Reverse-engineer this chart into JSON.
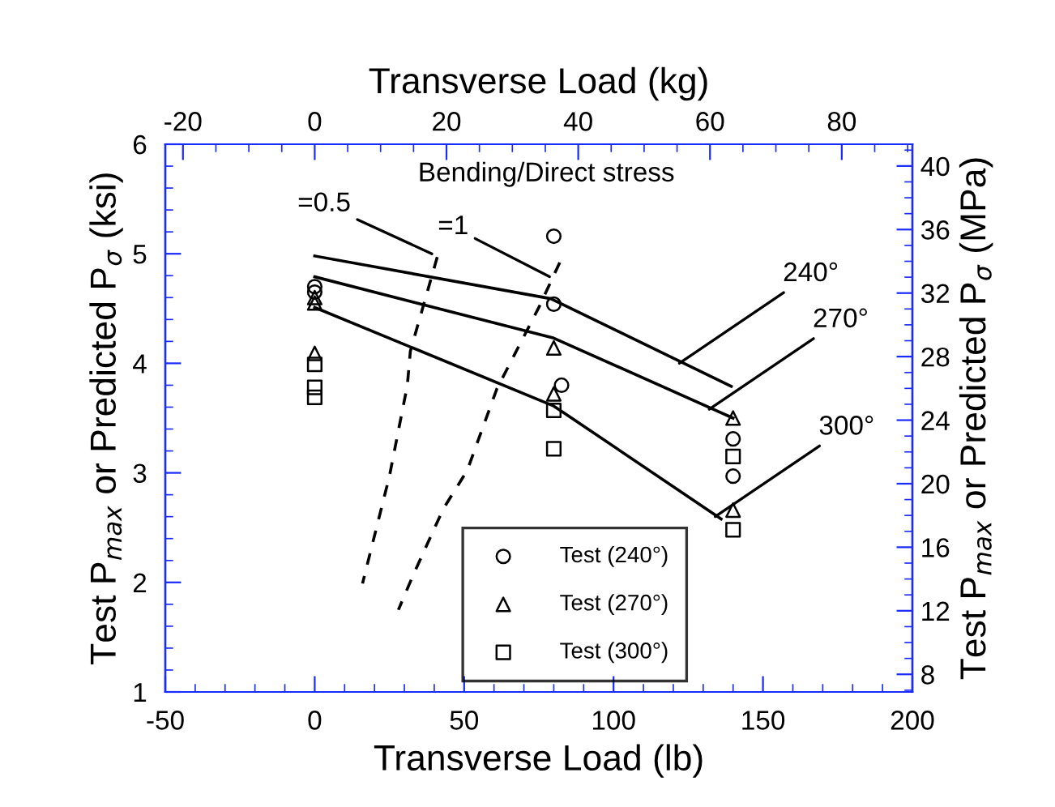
{
  "chart_data": {
    "type": "scatter",
    "xlabel": "Transverse Load (lb)",
    "ylabel": "Test P$_{max}$ or Predicted P$_{σ}$ (ksi)",
    "x2label": "Transverse Load (kg)",
    "y2label": "Test P$_{max}$ or Predicted P$_{σ}$ (MPa)",
    "xlim": [
      -50,
      200
    ],
    "xticks": [
      -50,
      0,
      50,
      100,
      150,
      200
    ],
    "ylim": [
      1,
      6
    ],
    "yticks": [
      1,
      2,
      3,
      4,
      5,
      6
    ],
    "x2lim": [
      -22.68,
      90.72
    ],
    "x2ticks": [
      -20,
      0,
      20,
      40,
      60,
      80
    ],
    "y2lim": [
      6.89,
      41.37
    ],
    "y2ticks": [
      8,
      12,
      16,
      20,
      24,
      28,
      32,
      36,
      40
    ],
    "grid": false,
    "legend": "bottom",
    "series": [
      {
        "name": "Test (240°)",
        "marker": "circle",
        "color": "#000000",
        "x": [
          0,
          0,
          80,
          80,
          82.6,
          140,
          140
        ],
        "values": [
          4.7,
          4.65,
          5.16,
          4.54,
          3.8,
          3.31,
          2.97
        ]
      },
      {
        "name": "Test (270°)",
        "marker": "triangle",
        "color": "#000000",
        "x": [
          0,
          0,
          0,
          80,
          80,
          140,
          140
        ],
        "values": [
          4.6,
          4.55,
          4.09,
          4.14,
          3.72,
          3.5,
          2.66
        ]
      },
      {
        "name": "Test (300°)",
        "marker": "square",
        "color": "#000000",
        "x": [
          0,
          0,
          0,
          80,
          80,
          140,
          140
        ],
        "values": [
          3.99,
          3.78,
          3.69,
          3.57,
          3.22,
          3.15,
          2.48
        ]
      },
      {
        "type": "line",
        "line_style": "solid",
        "color": "#000000",
        "x": [
          0,
          79,
          139.4
        ],
        "values": [
          4.98,
          4.59,
          3.79
        ]
      },
      {
        "type": "line",
        "line_style": "solid",
        "color": "#000000",
        "x": [
          0,
          80,
          140
        ],
        "values": [
          4.79,
          4.23,
          3.5
        ]
      },
      {
        "type": "line",
        "line_style": "solid",
        "color": "#000000",
        "x": [
          0,
          80,
          136
        ],
        "values": [
          4.51,
          3.61,
          2.58
        ]
      },
      {
        "type": "line",
        "line_style": "dashed",
        "color": "#000000",
        "x": [
          41,
          32,
          31,
          25,
          16
        ],
        "values": [
          4.97,
          4.11,
          3.8,
          2.97,
          1.99
        ]
      },
      {
        "type": "line",
        "line_style": "dashed",
        "color": "#000000",
        "x": [
          82,
          75,
          61,
          51,
          43,
          33,
          28
        ],
        "values": [
          4.92,
          4.51,
          3.77,
          3.02,
          2.67,
          2.07,
          1.75
        ]
      }
    ],
    "annotations": [
      "Bending/Direct stress",
      {
        "text": "=1",
        "x": 78.6,
        "y": 4.79
      },
      {
        "text": "=0.5",
        "x": 39.2,
        "y": 5.0
      },
      {
        "text": "240°",
        "x": 122,
        "y": 4.0
      },
      {
        "text": "270°",
        "x": 132,
        "y": 3.58
      },
      {
        "text": "300°",
        "x": 134,
        "y": 2.6
      }
    ]
  }
}
